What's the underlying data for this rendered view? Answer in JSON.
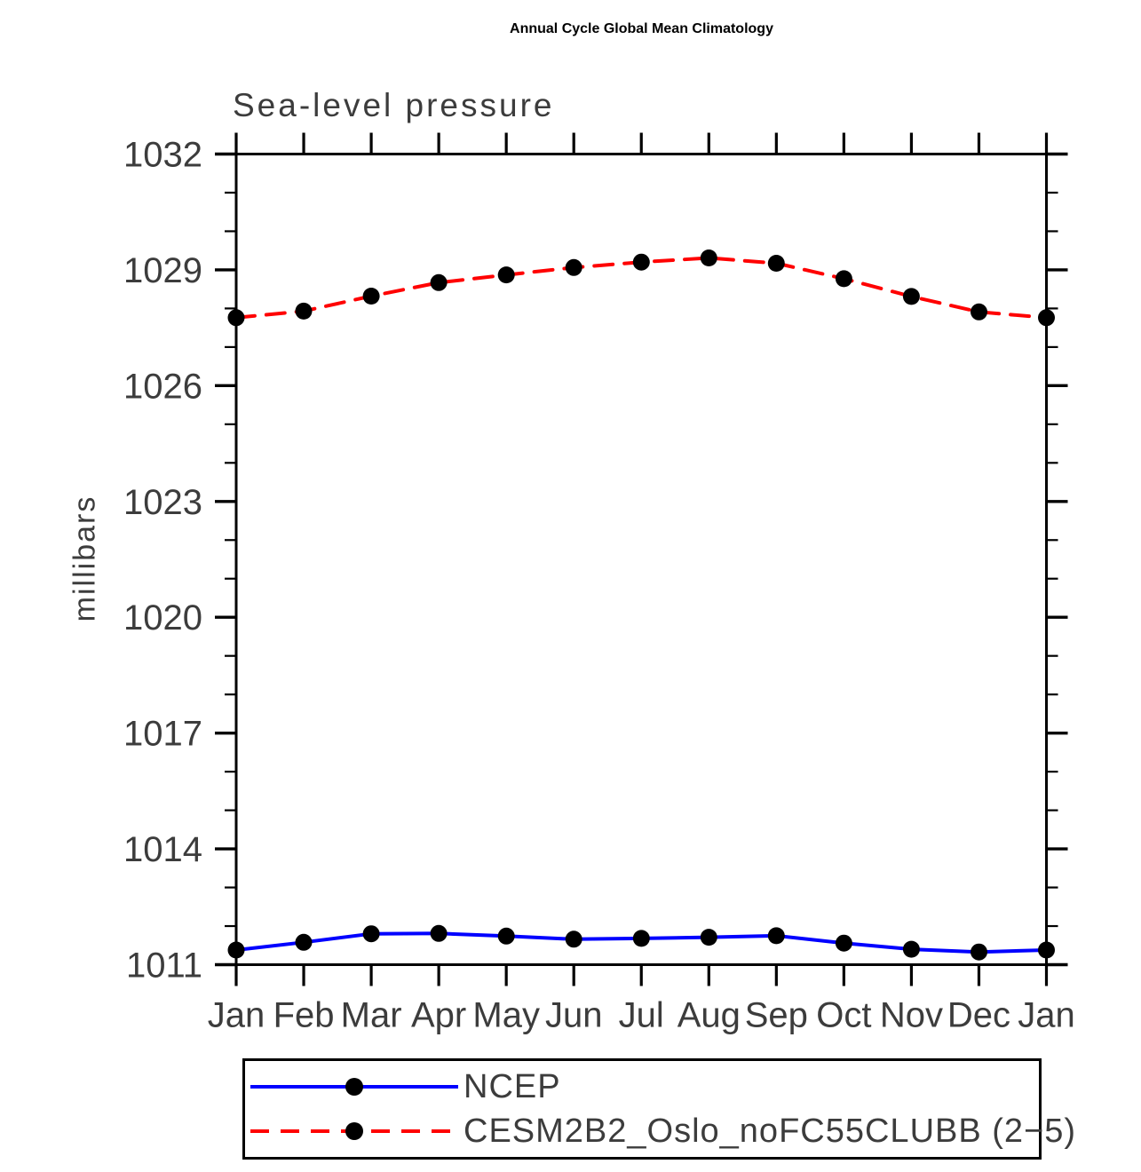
{
  "page": {
    "background": "#ffffff",
    "frame_color": "#000000",
    "text_color": "#3c3c3c"
  },
  "chart_data": {
    "type": "line",
    "title": "Annual Cycle Global Mean Climatology",
    "subtitle": "Sea-level pressure",
    "ylabel": "millibars",
    "xlabel": "",
    "x_tick_labels": [
      "Jan",
      "Feb",
      "Mar",
      "Apr",
      "May",
      "Jun",
      "Jul",
      "Aug",
      "Sep",
      "Oct",
      "Nov",
      "Dec",
      "Jan"
    ],
    "y_ticks_major": [
      1011,
      1014,
      1017,
      1020,
      1023,
      1026,
      1029,
      1032
    ],
    "y_minor_step": 1,
    "ylim": [
      1011,
      1032
    ],
    "grid": false,
    "legend_position": "bottom",
    "series": [
      {
        "name": "NCEP",
        "color": "#0000ff",
        "style": "solid",
        "marker": "filled-circle",
        "marker_color": "#000000",
        "values": [
          1011.38,
          1011.58,
          1011.8,
          1011.81,
          1011.74,
          1011.66,
          1011.68,
          1011.71,
          1011.75,
          1011.56,
          1011.4,
          1011.33,
          1011.38
        ]
      },
      {
        "name": "CESM2B2_Oslo_noFC55CLUBB (2−5)",
        "color": "#ff0000",
        "style": "dashed",
        "marker": "filled-circle",
        "marker_color": "#000000",
        "values": [
          1027.76,
          1027.93,
          1028.32,
          1028.67,
          1028.87,
          1029.06,
          1029.2,
          1029.31,
          1029.17,
          1028.77,
          1028.31,
          1027.91,
          1027.76
        ]
      }
    ]
  }
}
